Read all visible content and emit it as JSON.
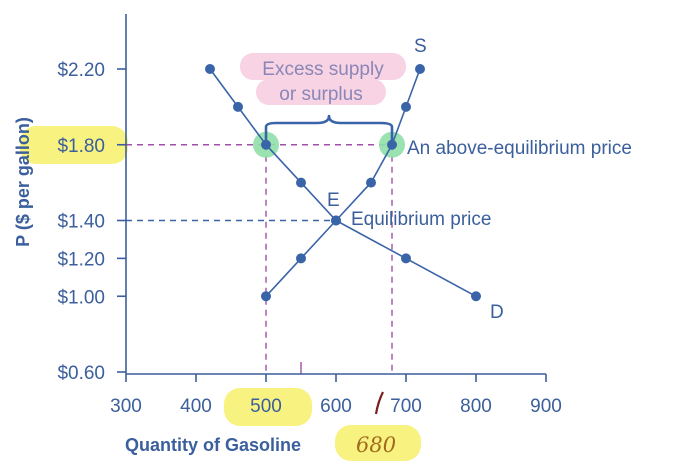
{
  "chart_data": {
    "type": "line",
    "ylabel": "P ($ per gallon)",
    "xlabel": "Quantity of Gasoline",
    "xlim": [
      300,
      900
    ],
    "ylim": [
      0.6,
      2.45
    ],
    "x_ticks": [
      "300",
      "400",
      "500",
      "600",
      "700",
      "800",
      "900"
    ],
    "y_ticks": [
      {
        "value": 0.6,
        "label": "$0.60"
      },
      {
        "value": 1.0,
        "label": "$1.00"
      },
      {
        "value": 1.2,
        "label": "$1.20"
      },
      {
        "value": 1.4,
        "label": "$1.40"
      },
      {
        "value": 1.8,
        "label": "$1.80"
      },
      {
        "value": 2.2,
        "label": "$2.20"
      }
    ],
    "series": [
      {
        "name": "D",
        "color": "#3a64a8",
        "points": [
          [
            420,
            2.2
          ],
          [
            460,
            2.0
          ],
          [
            500,
            1.8
          ],
          [
            550,
            1.6
          ],
          [
            600,
            1.4
          ],
          [
            700,
            1.2
          ],
          [
            800,
            1.0
          ]
        ]
      },
      {
        "name": "S",
        "color": "#3a64a8",
        "points": [
          [
            500,
            1.0
          ],
          [
            550,
            1.2
          ],
          [
            600,
            1.4
          ],
          [
            650,
            1.6
          ],
          [
            680,
            1.8
          ],
          [
            700,
            2.0
          ],
          [
            720,
            2.2
          ]
        ]
      }
    ],
    "highlighted_points": [
      [
        500,
        1.8
      ],
      [
        680,
        1.8
      ]
    ],
    "annotations": {
      "excess_line1": "Excess supply",
      "excess_line2": "or surplus",
      "above_eq": "An above-equilibrium price",
      "eq_label": "Equilibrium price",
      "e_label": "E",
      "handwritten_qty": "680"
    },
    "colors": {
      "axis": "#3b5f9c",
      "curve": "#3a64a8",
      "dashed_purple": "#a24fa8",
      "dashed_blue": "#3a64a8",
      "highlight_yellow": "#f7f06a",
      "highlight_green": "#8fe0a8",
      "pink_box": "#f7d3e3"
    }
  }
}
